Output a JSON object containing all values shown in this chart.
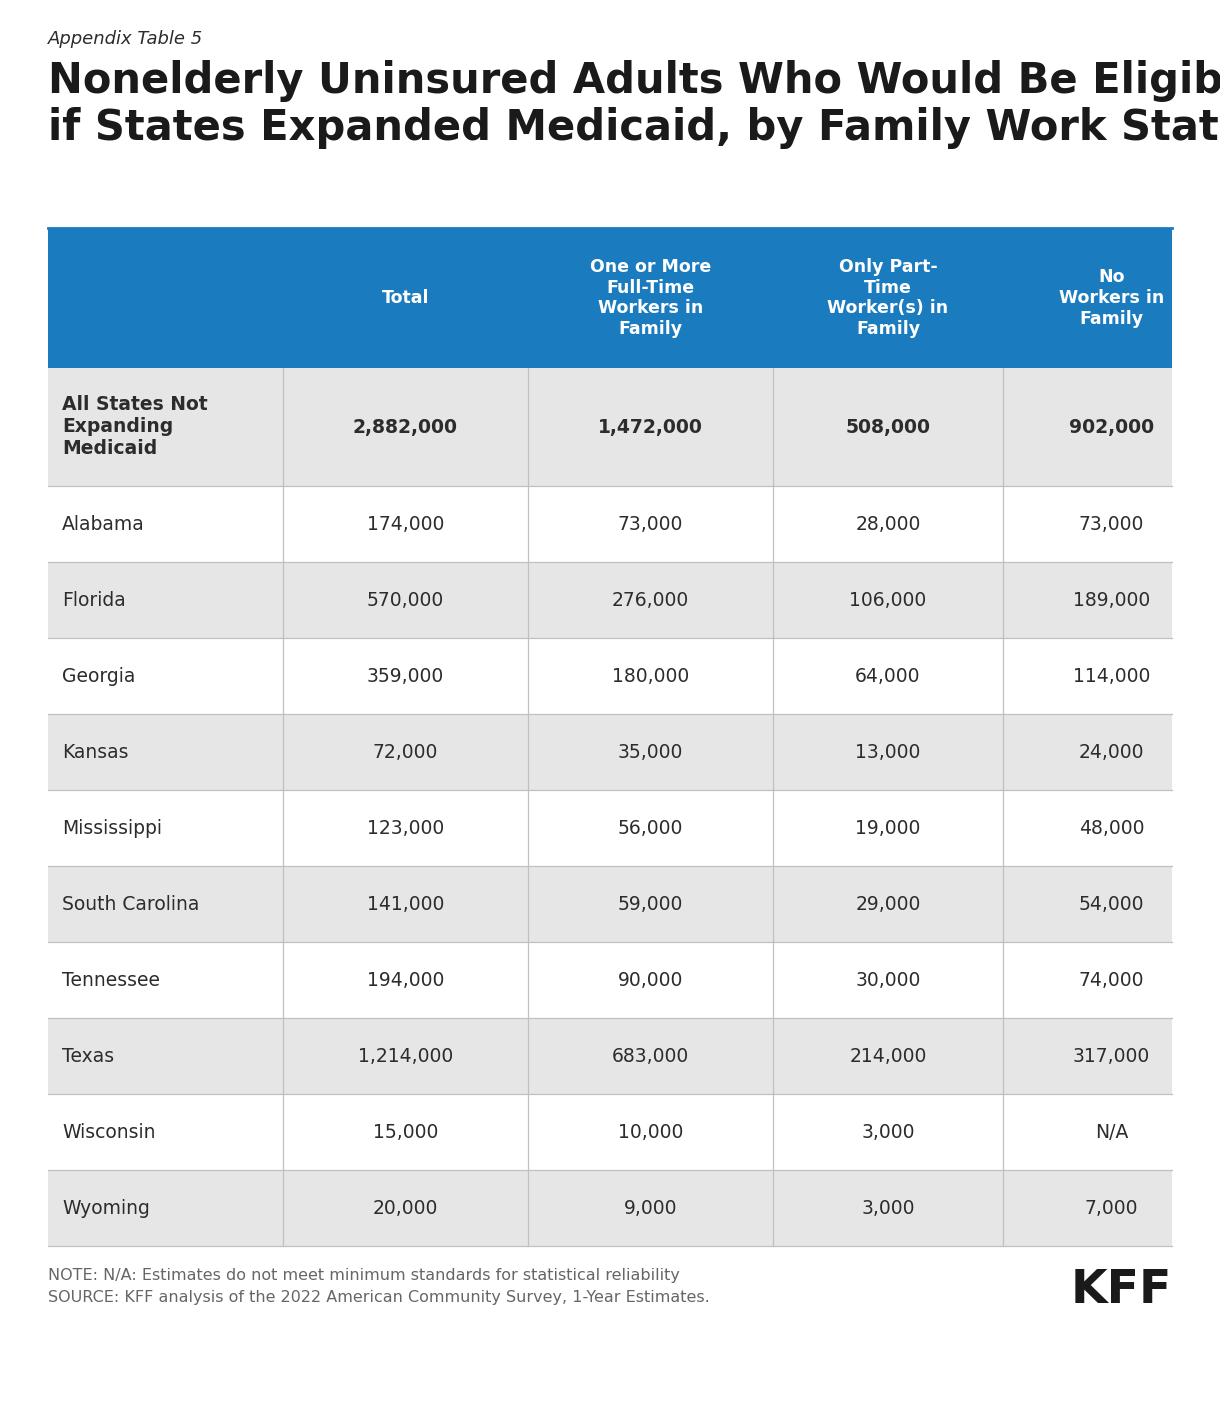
{
  "appendix_label": "Appendix Table 5",
  "title": "Nonelderly Uninsured Adults Who Would Be Eligible\nif States Expanded Medicaid, by Family Work Status",
  "col_headers": [
    "Total",
    "One or More\nFull-Time\nWorkers in\nFamily",
    "Only Part-\nTime\nWorker(s) in\nFamily",
    "No\nWorkers in\nFamily"
  ],
  "rows": [
    {
      "label": "All States Not\nExpanding\nMedicaid",
      "values": [
        "2,882,000",
        "1,472,000",
        "508,000",
        "902,000"
      ],
      "bold": true,
      "shaded": true
    },
    {
      "label": "Alabama",
      "values": [
        "174,000",
        "73,000",
        "28,000",
        "73,000"
      ],
      "bold": false,
      "shaded": false
    },
    {
      "label": "Florida",
      "values": [
        "570,000",
        "276,000",
        "106,000",
        "189,000"
      ],
      "bold": false,
      "shaded": true
    },
    {
      "label": "Georgia",
      "values": [
        "359,000",
        "180,000",
        "64,000",
        "114,000"
      ],
      "bold": false,
      "shaded": false
    },
    {
      "label": "Kansas",
      "values": [
        "72,000",
        "35,000",
        "13,000",
        "24,000"
      ],
      "bold": false,
      "shaded": true
    },
    {
      "label": "Mississippi",
      "values": [
        "123,000",
        "56,000",
        "19,000",
        "48,000"
      ],
      "bold": false,
      "shaded": false
    },
    {
      "label": "South Carolina",
      "values": [
        "141,000",
        "59,000",
        "29,000",
        "54,000"
      ],
      "bold": false,
      "shaded": true
    },
    {
      "label": "Tennessee",
      "values": [
        "194,000",
        "90,000",
        "30,000",
        "74,000"
      ],
      "bold": false,
      "shaded": false
    },
    {
      "label": "Texas",
      "values": [
        "1,214,000",
        "683,000",
        "214,000",
        "317,000"
      ],
      "bold": false,
      "shaded": true
    },
    {
      "label": "Wisconsin",
      "values": [
        "15,000",
        "10,000",
        "3,000",
        "N/A"
      ],
      "bold": false,
      "shaded": false
    },
    {
      "label": "Wyoming",
      "values": [
        "20,000",
        "9,000",
        "3,000",
        "7,000"
      ],
      "bold": false,
      "shaded": true
    }
  ],
  "header_bg_color": "#1a7bbf",
  "header_text_color": "#ffffff",
  "shaded_row_color": "#e6e6e6",
  "unshaded_row_color": "#ffffff",
  "text_color": "#2c2c2c",
  "note_text": "NOTE: N/A: Estimates do not meet minimum standards for statistical reliability\nSOURCE: KFF analysis of the 2022 American Community Survey, 1-Year Estimates.",
  "kff_logo": "KFF",
  "background_color": "#ffffff"
}
